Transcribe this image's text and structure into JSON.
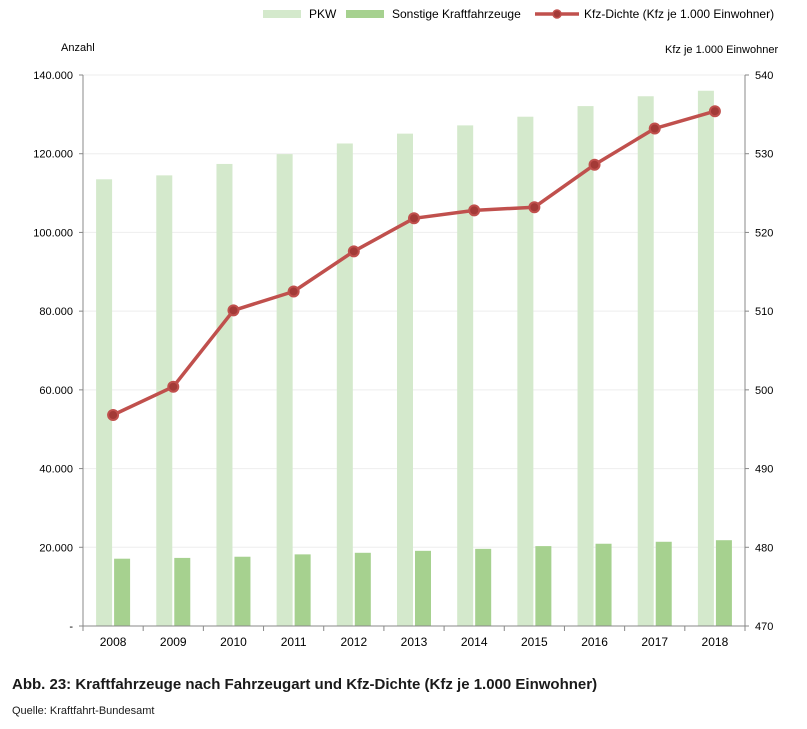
{
  "chart_data": {
    "type": "bar+line",
    "categories": [
      "2008",
      "2009",
      "2010",
      "2011",
      "2012",
      "2013",
      "2014",
      "2015",
      "2016",
      "2017",
      "2018"
    ],
    "series": [
      {
        "name": "PKW",
        "axis": "left",
        "kind": "bar",
        "values": [
          113500,
          114500,
          117400,
          119900,
          122600,
          125100,
          127200,
          129400,
          132100,
          134600,
          136000
        ]
      },
      {
        "name": "Sonstige Kraftfahrzeuge",
        "axis": "left",
        "kind": "bar",
        "values": [
          17100,
          17300,
          17600,
          18200,
          18600,
          19100,
          19600,
          20300,
          20900,
          21400,
          21800
        ]
      },
      {
        "name": "Kfz-Dichte (Kfz je 1.000 Einwohner)",
        "axis": "right",
        "kind": "line",
        "values": [
          496.8,
          500.4,
          510.1,
          512.5,
          517.6,
          521.8,
          522.8,
          523.2,
          528.6,
          533.2,
          535.4
        ]
      }
    ],
    "ylabel_left": "Anzahl",
    "ylabel_right": "Kfz je 1.000 Einwohner",
    "ylim_left": [
      0,
      140000
    ],
    "ylim_right": [
      470,
      540
    ],
    "yticks_left": [
      "-",
      "20.000",
      "40.000",
      "60.000",
      "80.000",
      "100.000",
      "120.000",
      "140.000"
    ],
    "yticks_right": [
      "470",
      "480",
      "490",
      "500",
      "510",
      "520",
      "530",
      "540"
    ],
    "legend_position": "top",
    "colors": {
      "pkw": "#d4e9cc",
      "sonstige": "#a6d18f",
      "line": "#c0504d",
      "marker": "#a33a37"
    }
  },
  "caption": "Abb. 23: Kraftfahrzeuge nach Fahrzeugart und Kfz-Dichte (Kfz je 1.000 Einwohner)",
  "source": "Quelle: Kraftfahrt-Bundesamt"
}
